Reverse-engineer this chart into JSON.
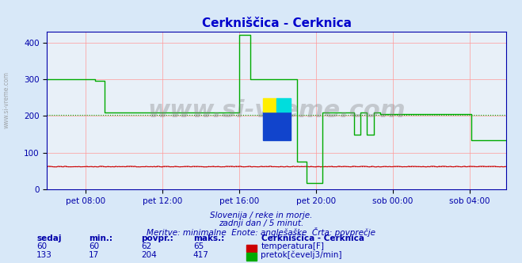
{
  "title": "Cerkniščica - Cerknica",
  "title_color": "#0000cc",
  "bg_color": "#d8e8f8",
  "plot_bg_color": "#e8f0f8",
  "grid_color": "#ff9999",
  "axis_color": "#0000aa",
  "watermark": "www.si-vreme.com",
  "subtitle_line1": "Slovenija / reke in morje.",
  "subtitle_line2": "zadnji dan / 5 minut.",
  "subtitle_line3": "Meritve: minimalne  Enote: anglešaške  Črta: povprečje",
  "xlabel_ticks": [
    "pet 08:00",
    "pet 12:00",
    "pet 16:00",
    "pet 20:00",
    "sob 00:00",
    "sob 04:00"
  ],
  "ylim": [
    0,
    430
  ],
  "yticks": [
    0,
    100,
    200,
    300,
    400
  ],
  "avg_temp": 62,
  "avg_flow": 204,
  "temp_color": "#cc0000",
  "flow_color": "#00aa00",
  "table_headers": [
    "sedaj",
    "min.:",
    "povpr.:",
    "maks.:"
  ],
  "table_data": [
    [
      60,
      60,
      62,
      65
    ],
    [
      133,
      17,
      204,
      417
    ]
  ],
  "legend_title": "Cerkniščica - Cerknica",
  "legend_entries": [
    "temperatura[F]",
    "pretok[čevelj3/min]"
  ],
  "legend_colors": [
    "#cc0000",
    "#00aa00"
  ]
}
